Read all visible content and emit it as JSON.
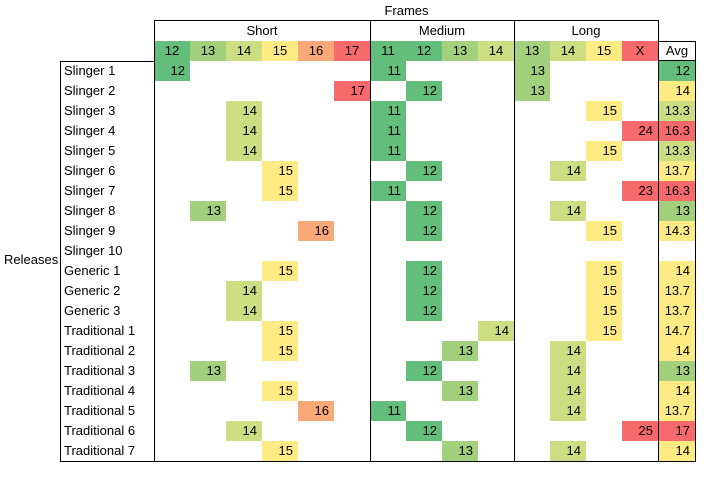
{
  "chart_data": {
    "type": "heatmap",
    "title": "Frames",
    "ylabel": "Releases",
    "palette": {
      "11": "#63be7b",
      "12": "#63be7b",
      "13": "#a2d07d",
      "14": "#cddd82",
      "15": "#ffeb84",
      "16": "#f8a977",
      "17": "#f8696b",
      "23": "#f8696b",
      "24": "#f8696b",
      "25": "#f8696b",
      "X": "#f8696b"
    },
    "groups": [
      {
        "name": "Short",
        "columns": [
          "12",
          "13",
          "14",
          "15",
          "16",
          "17"
        ]
      },
      {
        "name": "Medium",
        "columns": [
          "11",
          "12",
          "13",
          "14"
        ]
      },
      {
        "name": "Long",
        "columns": [
          "13",
          "14",
          "15",
          "X"
        ]
      }
    ],
    "avg_label": "Avg",
    "rows": [
      {
        "name": "Slinger 1",
        "values": [
          12,
          null,
          null,
          null,
          null,
          null,
          11,
          null,
          null,
          null,
          13,
          null,
          null,
          null
        ],
        "avg": "12",
        "avg_color": "#63be7b"
      },
      {
        "name": "Slinger 2",
        "values": [
          null,
          null,
          null,
          null,
          null,
          17,
          null,
          12,
          null,
          null,
          13,
          null,
          null,
          null
        ],
        "avg": "14",
        "avg_color": "#ffeb84"
      },
      {
        "name": "Slinger 3",
        "values": [
          null,
          null,
          14,
          null,
          null,
          null,
          11,
          null,
          null,
          null,
          null,
          null,
          15,
          null
        ],
        "avg": "13.3",
        "avg_color": "#cddd82"
      },
      {
        "name": "Slinger 4",
        "values": [
          null,
          null,
          14,
          null,
          null,
          null,
          11,
          null,
          null,
          null,
          null,
          null,
          null,
          24
        ],
        "avg": "16.3",
        "avg_color": "#f8696b"
      },
      {
        "name": "Slinger 5",
        "values": [
          null,
          null,
          14,
          null,
          null,
          null,
          11,
          null,
          null,
          null,
          null,
          null,
          15,
          null
        ],
        "avg": "13.3",
        "avg_color": "#cddd82"
      },
      {
        "name": "Slinger 6",
        "values": [
          null,
          null,
          null,
          15,
          null,
          null,
          null,
          12,
          null,
          null,
          null,
          14,
          null,
          null
        ],
        "avg": "13.7",
        "avg_color": "#ffeb84"
      },
      {
        "name": "Slinger 7",
        "values": [
          null,
          null,
          null,
          15,
          null,
          null,
          11,
          null,
          null,
          null,
          null,
          null,
          null,
          23
        ],
        "avg": "16.3",
        "avg_color": "#f8696b"
      },
      {
        "name": "Slinger 8",
        "values": [
          null,
          13,
          null,
          null,
          null,
          null,
          null,
          12,
          null,
          null,
          null,
          14,
          null,
          null
        ],
        "avg": "13",
        "avg_color": "#a2d07d"
      },
      {
        "name": "Slinger 9",
        "values": [
          null,
          null,
          null,
          null,
          16,
          null,
          null,
          12,
          null,
          null,
          null,
          null,
          15,
          null
        ],
        "avg": "14.3",
        "avg_color": "#ffeb84"
      },
      {
        "name": "Slinger 10",
        "values": [
          null,
          null,
          null,
          null,
          null,
          null,
          null,
          null,
          null,
          null,
          null,
          null,
          null,
          null
        ],
        "avg": null,
        "avg_color": null
      },
      {
        "name": "Generic 1",
        "values": [
          null,
          null,
          null,
          15,
          null,
          null,
          null,
          12,
          null,
          null,
          null,
          null,
          15,
          null
        ],
        "avg": "14",
        "avg_color": "#ffeb84"
      },
      {
        "name": "Generic 2",
        "values": [
          null,
          null,
          14,
          null,
          null,
          null,
          null,
          12,
          null,
          null,
          null,
          null,
          15,
          null
        ],
        "avg": "13.7",
        "avg_color": "#ffeb84"
      },
      {
        "name": "Generic 3",
        "values": [
          null,
          null,
          14,
          null,
          null,
          null,
          null,
          12,
          null,
          null,
          null,
          null,
          15,
          null
        ],
        "avg": "13.7",
        "avg_color": "#ffeb84"
      },
      {
        "name": "Traditional 1",
        "values": [
          null,
          null,
          null,
          15,
          null,
          null,
          null,
          null,
          null,
          14,
          null,
          null,
          15,
          null
        ],
        "avg": "14.7",
        "avg_color": "#ffeb84"
      },
      {
        "name": "Traditional 2",
        "values": [
          null,
          null,
          null,
          15,
          null,
          null,
          null,
          null,
          13,
          null,
          null,
          14,
          null,
          null
        ],
        "avg": "14",
        "avg_color": "#ffeb84"
      },
      {
        "name": "Traditional 3",
        "values": [
          null,
          13,
          null,
          null,
          null,
          null,
          null,
          12,
          null,
          null,
          null,
          14,
          null,
          null
        ],
        "avg": "13",
        "avg_color": "#a2d07d"
      },
      {
        "name": "Traditional 4",
        "values": [
          null,
          null,
          null,
          15,
          null,
          null,
          null,
          null,
          13,
          null,
          null,
          14,
          null,
          null
        ],
        "avg": "14",
        "avg_color": "#ffeb84"
      },
      {
        "name": "Traditional 5",
        "values": [
          null,
          null,
          null,
          null,
          16,
          null,
          11,
          null,
          null,
          null,
          null,
          14,
          null,
          null
        ],
        "avg": "13.7",
        "avg_color": "#ffeb84"
      },
      {
        "name": "Traditional 6",
        "values": [
          null,
          null,
          14,
          null,
          null,
          null,
          null,
          12,
          null,
          null,
          null,
          null,
          null,
          25
        ],
        "avg": "17",
        "avg_color": "#f8696b"
      },
      {
        "name": "Traditional 7",
        "values": [
          null,
          null,
          null,
          15,
          null,
          null,
          null,
          null,
          13,
          null,
          null,
          14,
          null,
          null
        ],
        "avg": "14",
        "avg_color": "#ffeb84"
      }
    ]
  }
}
